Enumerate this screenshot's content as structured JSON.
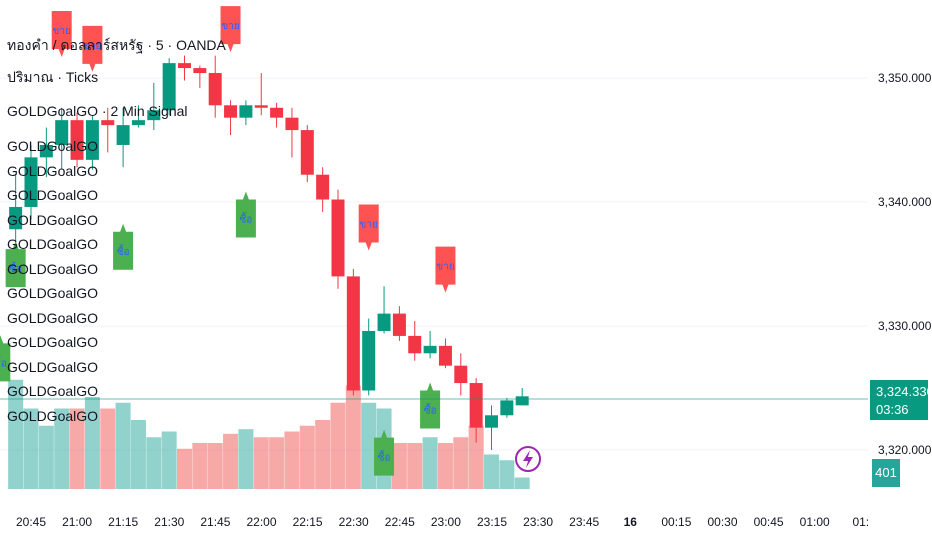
{
  "header": {
    "symbol": "ทองคำ / ดอลลาร์สหรัฐ · 5 · OANDA",
    "volume": "ปริมาณ · Ticks",
    "indicator": "GOLDGoalGO · 2 Min Signal",
    "overlay_labels": [
      "GOLDGoalGO",
      "GOLDGoalGO",
      "GOLDGoalGO",
      "GOLDGoalGO",
      "GOLDGoalGO",
      "GOLDGoalGO",
      "GOLDGoalGO",
      "GOLDGoalGO",
      "GOLDGoalGO",
      "GOLDGoalGO",
      "GOLDGoalGO",
      "GOLDGoalGO"
    ]
  },
  "price_axis": {
    "labels": [
      "3,350.000",
      "3,340.000",
      "3,330.000",
      "3,320.000"
    ],
    "current_price": "3,324.330",
    "countdown": "03:36",
    "volume_badge": "401"
  },
  "time_axis": [
    "20:45",
    "21:00",
    "21:15",
    "21:30",
    "21:45",
    "22:00",
    "22:15",
    "22:30",
    "22:45",
    "23:00",
    "23:15",
    "23:30",
    "23:45",
    "16",
    "00:15",
    "00:30",
    "00:45",
    "01:00",
    "01:"
  ],
  "colors": {
    "up": "#089981",
    "down": "#f23645",
    "vol_up": "#26a69a",
    "vol_down": "#ef5350",
    "buy_marker": "#4caf50",
    "sell_marker": "#ff5252",
    "marker_text": "#2962ff"
  },
  "chart_data": {
    "type": "candlestick",
    "title": "ทองคำ / ดอลลาร์สหรัฐ · 5 · OANDA",
    "ylim": [
      3315.5,
      3356.5
    ],
    "y_ticks": [
      3320,
      3330,
      3340,
      3350
    ],
    "current_price": 3324.33,
    "candles": [
      {
        "t": "20:40",
        "o": 3337.8,
        "h": 3342.2,
        "l": 3335.6,
        "c": 3339.6,
        "v": 95
      },
      {
        "t": "20:45",
        "o": 3339.6,
        "h": 3344.6,
        "l": 3338.6,
        "c": 3343.6,
        "v": 70
      },
      {
        "t": "20:50",
        "o": 3343.6,
        "h": 3346.0,
        "l": 3342.0,
        "c": 3344.6,
        "v": 55
      },
      {
        "t": "20:55",
        "o": 3344.6,
        "h": 3347.6,
        "l": 3342.6,
        "c": 3346.6,
        "v": 70
      },
      {
        "t": "21:00",
        "o": 3346.6,
        "h": 3347.2,
        "l": 3342.8,
        "c": 3343.4,
        "v": 70
      },
      {
        "t": "21:05",
        "o": 3343.4,
        "h": 3347.0,
        "l": 3342.6,
        "c": 3346.6,
        "v": 80
      },
      {
        "t": "21:10",
        "o": 3346.6,
        "h": 3347.6,
        "l": 3344.0,
        "c": 3346.2,
        "v": 70
      },
      {
        "t": "21:15",
        "o": 3344.6,
        "h": 3347.6,
        "l": 3342.8,
        "c": 3346.2,
        "v": 75
      },
      {
        "t": "21:20",
        "o": 3346.2,
        "h": 3347.8,
        "l": 3346.0,
        "c": 3346.6,
        "v": 60
      },
      {
        "t": "21:25",
        "o": 3346.6,
        "h": 3349.6,
        "l": 3345.8,
        "c": 3347.4,
        "v": 45
      },
      {
        "t": "21:30",
        "o": 3347.4,
        "h": 3351.6,
        "l": 3347.0,
        "c": 3351.2,
        "v": 50
      },
      {
        "t": "21:35",
        "o": 3351.2,
        "h": 3351.8,
        "l": 3349.8,
        "c": 3350.8,
        "v": 35
      },
      {
        "t": "21:40",
        "o": 3350.8,
        "h": 3351.0,
        "l": 3349.2,
        "c": 3350.4,
        "v": 40
      },
      {
        "t": "21:45",
        "o": 3350.4,
        "h": 3351.8,
        "l": 3346.8,
        "c": 3347.8,
        "v": 40
      },
      {
        "t": "21:50",
        "o": 3347.8,
        "h": 3348.2,
        "l": 3345.4,
        "c": 3346.8,
        "v": 48
      },
      {
        "t": "21:55",
        "o": 3346.8,
        "h": 3348.2,
        "l": 3346.2,
        "c": 3347.8,
        "v": 52
      },
      {
        "t": "22:00",
        "o": 3347.8,
        "h": 3350.4,
        "l": 3347.0,
        "c": 3347.6,
        "v": 45
      },
      {
        "t": "22:05",
        "o": 3347.6,
        "h": 3348.0,
        "l": 3346.0,
        "c": 3346.8,
        "v": 45
      },
      {
        "t": "22:10",
        "o": 3346.8,
        "h": 3347.6,
        "l": 3343.6,
        "c": 3345.8,
        "v": 50
      },
      {
        "t": "22:15",
        "o": 3345.8,
        "h": 3346.2,
        "l": 3341.6,
        "c": 3342.2,
        "v": 55
      },
      {
        "t": "22:20",
        "o": 3342.2,
        "h": 3342.8,
        "l": 3339.2,
        "c": 3340.2,
        "v": 60
      },
      {
        "t": "22:25",
        "o": 3340.2,
        "h": 3341.0,
        "l": 3333.0,
        "c": 3334.0,
        "v": 75
      },
      {
        "t": "22:30",
        "o": 3334.0,
        "h": 3334.6,
        "l": 3324.4,
        "c": 3324.8,
        "v": 90
      },
      {
        "t": "22:35",
        "o": 3324.8,
        "h": 3330.6,
        "l": 3324.4,
        "c": 3329.6,
        "v": 75
      },
      {
        "t": "22:40",
        "o": 3329.6,
        "h": 3333.2,
        "l": 3329.4,
        "c": 3331.0,
        "v": 70
      },
      {
        "t": "22:45",
        "o": 3331.0,
        "h": 3331.6,
        "l": 3328.8,
        "c": 3329.2,
        "v": 40
      },
      {
        "t": "22:50",
        "o": 3329.2,
        "h": 3330.4,
        "l": 3327.2,
        "c": 3327.8,
        "v": 40
      },
      {
        "t": "22:55",
        "o": 3327.8,
        "h": 3329.6,
        "l": 3327.4,
        "c": 3328.4,
        "v": 45
      },
      {
        "t": "23:00",
        "o": 3328.4,
        "h": 3329.0,
        "l": 3326.6,
        "c": 3326.8,
        "v": 40
      },
      {
        "t": "23:05",
        "o": 3326.8,
        "h": 3327.8,
        "l": 3324.4,
        "c": 3325.4,
        "v": 45
      },
      {
        "t": "23:10",
        "o": 3325.4,
        "h": 3325.8,
        "l": 3320.6,
        "c": 3321.8,
        "v": 55
      },
      {
        "t": "23:15",
        "o": 3321.8,
        "h": 3323.6,
        "l": 3320.0,
        "c": 3322.8,
        "v": 30
      },
      {
        "t": "23:20",
        "o": 3322.8,
        "h": 3324.2,
        "l": 3322.6,
        "c": 3324.0,
        "v": 25
      },
      {
        "t": "23:25",
        "o": 3323.6,
        "h": 3325.0,
        "l": 3323.6,
        "c": 3324.33,
        "v": 10
      }
    ],
    "signals": [
      {
        "t": "20:55",
        "kind": "sell",
        "label": "ขาย",
        "price": 3355.4
      },
      {
        "t": "21:05",
        "kind": "sell",
        "label": "ขาย",
        "price": 3354.2
      },
      {
        "t": "21:15",
        "kind": "buy",
        "label": "ซื้อ",
        "price": 3337.6
      },
      {
        "t": "21:50",
        "kind": "sell",
        "label": "ขาย",
        "price": 3355.8
      },
      {
        "t": "21:55",
        "kind": "buy",
        "label": "ซื้อ",
        "price": 3340.2
      },
      {
        "t": "22:35",
        "kind": "sell",
        "label": "ขาย",
        "price": 3339.8
      },
      {
        "t": "22:40",
        "kind": "buy",
        "label": "ซื้อ",
        "price": 3321.0
      },
      {
        "t": "22:55",
        "kind": "buy",
        "label": "ซื้อ",
        "price": 3324.8
      },
      {
        "t": "23:00",
        "kind": "sell",
        "label": "ขาย",
        "price": 3336.4
      },
      {
        "t": "20:40",
        "kind": "buy",
        "label": "ซื้อ",
        "price": 3336.2
      },
      {
        "t": "20:35",
        "kind": "buy",
        "label": "ซื้อ",
        "price": 3328.6
      }
    ]
  }
}
